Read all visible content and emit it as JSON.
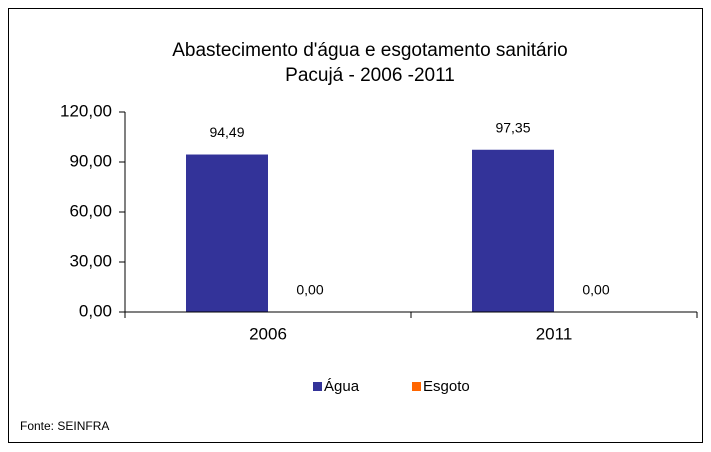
{
  "chart_data": {
    "type": "bar",
    "title": "Abastecimento d'água e esgotamento sanitário",
    "subtitle": "Pacujá - 2006 -2011",
    "categories": [
      "2006",
      "2011"
    ],
    "series": [
      {
        "name": "Água",
        "color": "#333399",
        "values": [
          94.49,
          97.35
        ],
        "value_labels": [
          "94,49",
          "97,35"
        ]
      },
      {
        "name": "Esgoto",
        "color": "#FF6600",
        "values": [
          0,
          0
        ],
        "value_labels": [
          "0,00",
          "0,00"
        ]
      }
    ],
    "ylim": [
      0,
      120
    ],
    "yticks": [
      {
        "value": 0,
        "label": "0,00"
      },
      {
        "value": 30,
        "label": "30,00"
      },
      {
        "value": 60,
        "label": "60,00"
      },
      {
        "value": 90,
        "label": "90,00"
      },
      {
        "value": 120,
        "label": "120,00"
      }
    ],
    "legend": "bottom",
    "source": "Fonte: SEINFRA"
  }
}
